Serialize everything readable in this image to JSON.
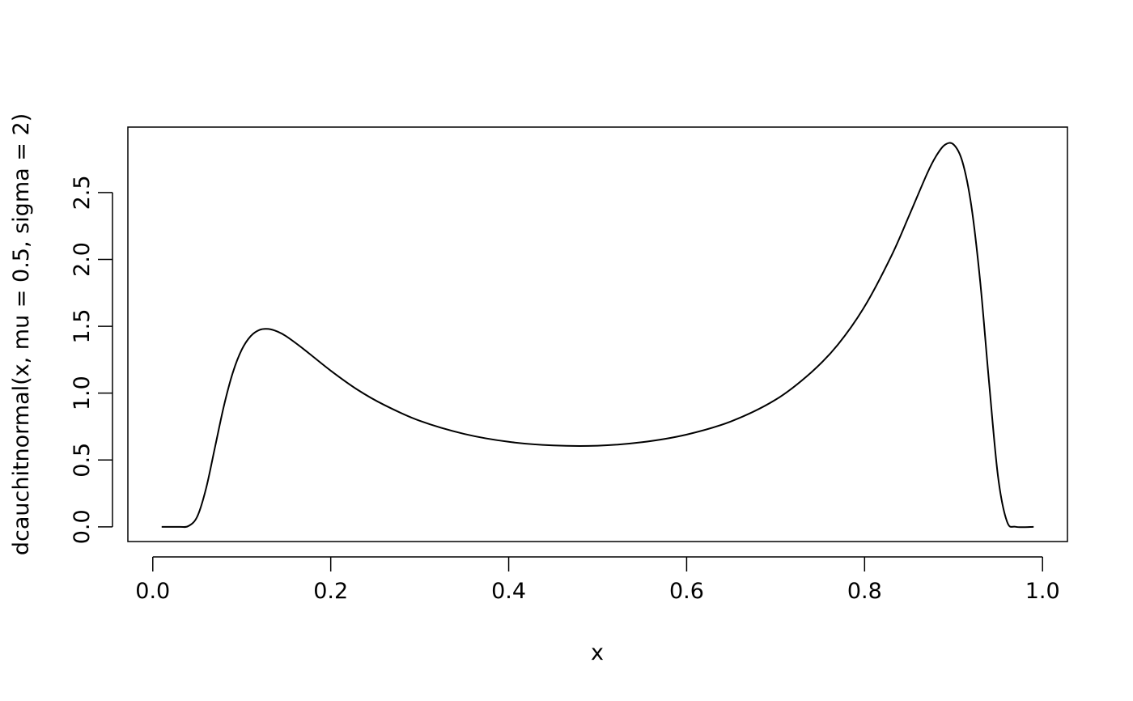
{
  "chart_data": {
    "type": "line",
    "title": "",
    "xlabel": "x",
    "ylabel": "dcauchitnormal(x, mu = 0.5, sigma = 2)",
    "xlim": [
      -0.028,
      1.028
    ],
    "ylim": [
      -0.11,
      2.99
    ],
    "xticks": [
      0.0,
      0.2,
      0.4,
      0.6,
      0.8,
      1.0
    ],
    "xtick_labels": [
      "0.0",
      "0.2",
      "0.4",
      "0.6",
      "0.8",
      "1.0"
    ],
    "yticks": [
      0.0,
      0.5,
      1.0,
      1.5,
      2.0,
      2.5
    ],
    "ytick_labels": [
      "0.0",
      "0.5",
      "1.0",
      "1.5",
      "2.0",
      "2.5"
    ],
    "grid": false,
    "line_color": "#000000",
    "series": [
      {
        "x": [
          0.01,
          0.03,
          0.04,
          0.05,
          0.06,
          0.07,
          0.08,
          0.09,
          0.1,
          0.11,
          0.12,
          0.13,
          0.14,
          0.15,
          0.17,
          0.2,
          0.23,
          0.26,
          0.3,
          0.35,
          0.4,
          0.45,
          0.5,
          0.55,
          0.6,
          0.65,
          0.7,
          0.74,
          0.77,
          0.8,
          0.83,
          0.85,
          0.87,
          0.88,
          0.89,
          0.9,
          0.91,
          0.92,
          0.93,
          0.94,
          0.95,
          0.96,
          0.97,
          0.99
        ],
        "y": [
          0,
          2e-05,
          0.0057,
          0.077,
          0.29,
          0.598,
          0.906,
          1.154,
          1.325,
          1.426,
          1.473,
          1.48,
          1.461,
          1.425,
          1.327,
          1.168,
          1.026,
          0.912,
          0.793,
          0.695,
          0.636,
          0.609,
          0.607,
          0.633,
          0.69,
          0.789,
          0.951,
          1.155,
          1.363,
          1.648,
          2.025,
          2.327,
          2.638,
          2.769,
          2.856,
          2.86,
          2.73,
          2.4,
          1.83,
          1.073,
          0.375,
          0.041,
          0.0002,
          0
        ]
      }
    ]
  }
}
